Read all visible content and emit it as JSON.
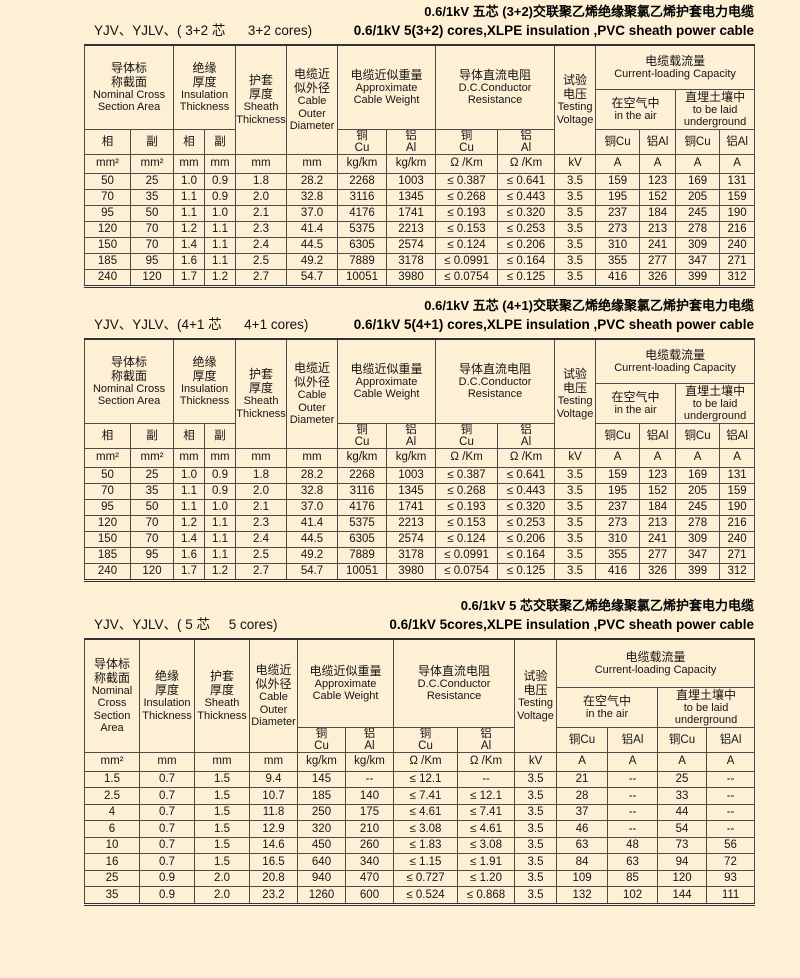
{
  "page": {
    "background": "#FDF0D4",
    "border_color": "#4C4C4C",
    "text_color": "#151515"
  },
  "sections": [
    {
      "model_label": "YJV、YJLV、( 3+2 芯      3+2 cores)",
      "title_cn": "0.6/1kV 五芯 (3+2)交联聚乙烯绝缘聚氯乙烯护套电力电缆",
      "title_en": "0.6/1kV 5(3+2) cores,XLPE insulation ,PVC sheath power cable",
      "header": {
        "cross_section": {
          "cn": "导体标\n称截面",
          "en": "Nominal Cross\nSection Area",
          "sub_phase": "相",
          "sub_aux": "副"
        },
        "insulation": {
          "cn": "绝缘\n厚度",
          "en": "Insulation\nThickness",
          "sub_phase": "相",
          "sub_aux": "副"
        },
        "sheath": {
          "cn": "护套\n厚度",
          "en": "Sheath\nThickness"
        },
        "diameter": {
          "cn": "电缆近\n似外径",
          "en": "Cable\nOuter\nDiameter"
        },
        "weight": {
          "cn": "电缆近似重量",
          "en": "Approximate\nCable Weight",
          "sub_cu": "铜\nCu",
          "sub_al": "铝\nAl"
        },
        "resistance": {
          "cn": "导体直流电阻",
          "en": "D.C.Conductor\nResistance",
          "sub_cu": "铜\nCu",
          "sub_al": "铝\nAl"
        },
        "voltage": {
          "cn": "试验\n电压",
          "en": "Testing\nVoltage"
        },
        "capacity": {
          "cn": "电缆载流量",
          "en": "Current-loading Capacity",
          "air": {
            "cn": "在空气中",
            "en": "in the air",
            "sub_cu": "铜Cu",
            "sub_al": "铝Al"
          },
          "underground": {
            "cn": "直埋土壤中",
            "en": "to be laid\nunderground",
            "sub_cu": "铜Cu",
            "sub_al": "铝Al"
          }
        }
      },
      "units": [
        "mm²",
        "mm²",
        "mm",
        "mm",
        "mm",
        "mm",
        "kg/km",
        "kg/km",
        "Ω /Km",
        "Ω /Km",
        "kV",
        "A",
        "A",
        "A",
        "A"
      ],
      "rows": [
        [
          "50",
          "25",
          "1.0",
          "0.9",
          "1.8",
          "28.2",
          "2268",
          "1003",
          "≤ 0.387",
          "≤ 0.641",
          "3.5",
          "159",
          "123",
          "169",
          "131"
        ],
        [
          "70",
          "35",
          "1.1",
          "0.9",
          "2.0",
          "32.8",
          "3116",
          "1345",
          "≤ 0.268",
          "≤ 0.443",
          "3.5",
          "195",
          "152",
          "205",
          "159"
        ],
        [
          "95",
          "50",
          "1.1",
          "1.0",
          "2.1",
          "37.0",
          "4176",
          "1741",
          "≤ 0.193",
          "≤ 0.320",
          "3.5",
          "237",
          "184",
          "245",
          "190"
        ],
        [
          "120",
          "70",
          "1.2",
          "1.1",
          "2.3",
          "41.4",
          "5375",
          "2213",
          "≤ 0.153",
          "≤ 0.253",
          "3.5",
          "273",
          "213",
          "278",
          "216"
        ],
        [
          "150",
          "70",
          "1.4",
          "1.1",
          "2.4",
          "44.5",
          "6305",
          "2574",
          "≤ 0.124",
          "≤ 0.206",
          "3.5",
          "310",
          "241",
          "309",
          "240"
        ],
        [
          "185",
          "95",
          "1.6",
          "1.1",
          "2.5",
          "49.2",
          "7889",
          "3178",
          "≤ 0.0991",
          "≤ 0.164",
          "3.5",
          "355",
          "277",
          "347",
          "271"
        ],
        [
          "240",
          "120",
          "1.7",
          "1.2",
          "2.7",
          "54.7",
          "10051",
          "3980",
          "≤ 0.0754",
          "≤ 0.125",
          "3.5",
          "416",
          "326",
          "399",
          "312"
        ]
      ]
    },
    {
      "model_label": "YJV、YJLV、(4+1 芯      4+1 cores)",
      "title_cn": "0.6/1kV 五芯 (4+1)交联聚乙烯绝缘聚氯乙烯护套电力电缆",
      "title_en": "0.6/1kV 5(4+1) cores,XLPE insulation ,PVC sheath power cable",
      "header": {
        "cross_section": {
          "cn": "导体标\n称截面",
          "en": "Nominal Cross\nSection Area",
          "sub_phase": "相",
          "sub_aux": "副"
        },
        "insulation": {
          "cn": "绝缘\n厚度",
          "en": "Insulation\nThickness",
          "sub_phase": "相",
          "sub_aux": "副"
        },
        "sheath": {
          "cn": "护套\n厚度",
          "en": "Sheath\nThickness"
        },
        "diameter": {
          "cn": "电缆近\n似外径",
          "en": "Cable\nOuter\nDiameter"
        },
        "weight": {
          "cn": "电缆近似重量",
          "en": "Approximate\nCable Weight",
          "sub_cu": "铜\nCu",
          "sub_al": "铝\nAl"
        },
        "resistance": {
          "cn": "导体直流电阻",
          "en": "D.C.Conductor\nResistance",
          "sub_cu": "铜\nCu",
          "sub_al": "铝\nAl"
        },
        "voltage": {
          "cn": "试验\n电压",
          "en": "Testing\nVoltage"
        },
        "capacity": {
          "cn": "电缆载流量",
          "en": "Current-loading Capacity",
          "air": {
            "cn": "在空气中",
            "en": "in the air",
            "sub_cu": "铜Cu",
            "sub_al": "铝Al"
          },
          "underground": {
            "cn": "直埋土壤中",
            "en": "to be laid\nunderground",
            "sub_cu": "铜Cu",
            "sub_al": "铝Al"
          }
        }
      },
      "units": [
        "mm²",
        "mm²",
        "mm",
        "mm",
        "mm",
        "mm",
        "kg/km",
        "kg/km",
        "Ω /Km",
        "Ω /Km",
        "kV",
        "A",
        "A",
        "A",
        "A"
      ],
      "rows": [
        [
          "50",
          "25",
          "1.0",
          "0.9",
          "1.8",
          "28.2",
          "2268",
          "1003",
          "≤ 0.387",
          "≤ 0.641",
          "3.5",
          "159",
          "123",
          "169",
          "131"
        ],
        [
          "70",
          "35",
          "1.1",
          "0.9",
          "2.0",
          "32.8",
          "3116",
          "1345",
          "≤ 0.268",
          "≤ 0.443",
          "3.5",
          "195",
          "152",
          "205",
          "159"
        ],
        [
          "95",
          "50",
          "1.1",
          "1.0",
          "2.1",
          "37.0",
          "4176",
          "1741",
          "≤ 0.193",
          "≤ 0.320",
          "3.5",
          "237",
          "184",
          "245",
          "190"
        ],
        [
          "120",
          "70",
          "1.2",
          "1.1",
          "2.3",
          "41.4",
          "5375",
          "2213",
          "≤ 0.153",
          "≤ 0.253",
          "3.5",
          "273",
          "213",
          "278",
          "216"
        ],
        [
          "150",
          "70",
          "1.4",
          "1.1",
          "2.4",
          "44.5",
          "6305",
          "2574",
          "≤ 0.124",
          "≤ 0.206",
          "3.5",
          "310",
          "241",
          "309",
          "240"
        ],
        [
          "185",
          "95",
          "1.6",
          "1.1",
          "2.5",
          "49.2",
          "7889",
          "3178",
          "≤ 0.0991",
          "≤ 0.164",
          "3.5",
          "355",
          "277",
          "347",
          "271"
        ],
        [
          "240",
          "120",
          "1.7",
          "1.2",
          "2.7",
          "54.7",
          "10051",
          "3980",
          "≤ 0.0754",
          "≤ 0.125",
          "3.5",
          "416",
          "326",
          "399",
          "312"
        ]
      ]
    },
    {
      "model_label": "YJV、YJLV、( 5 芯     5 cores)",
      "title_cn": "0.6/1kV 5 芯交联聚乙烯绝缘聚氯乙烯护套电力电缆",
      "title_en": "0.6/1kV 5cores,XLPE insulation ,PVC sheath power cable",
      "header": {
        "cross_section": {
          "cn": "导体标\n称截面",
          "en": "Nominal\nCross\nSection Area"
        },
        "insulation": {
          "cn": "绝缘\n厚度",
          "en": "Insulation\nThickness"
        },
        "sheath": {
          "cn": "护套\n厚度",
          "en": "Sheath\nThickness"
        },
        "diameter": {
          "cn": "电缆近\n似外径",
          "en": "Cable\nOuter\nDiameter"
        },
        "weight": {
          "cn": "电缆近似重量",
          "en": "Approximate\nCable Weight",
          "sub_cu": "铜\nCu",
          "sub_al": "铝\nAl"
        },
        "resistance": {
          "cn": "导体直流电阻",
          "en": "D.C.Conductor\nResistance",
          "sub_cu": "铜\nCu",
          "sub_al": "铝\nAl"
        },
        "voltage": {
          "cn": "试验\n电压",
          "en": "Testing\nVoltage"
        },
        "capacity": {
          "cn": "电缆载流量",
          "en": "Current-loading Capacity",
          "air": {
            "cn": "在空气中",
            "en": "in the air",
            "sub_cu": "铜Cu",
            "sub_al": "铝Al"
          },
          "underground": {
            "cn": "直埋土壤中",
            "en": "to be laid\nunderground",
            "sub_cu": "铜Cu",
            "sub_al": "铝Al"
          }
        }
      },
      "units": [
        "mm²",
        "mm",
        "mm",
        "mm",
        "kg/km",
        "kg/km",
        "Ω /Km",
        "Ω /Km",
        "kV",
        "A",
        "A",
        "A",
        "A"
      ],
      "rows": [
        [
          "1.5",
          "0.7",
          "1.5",
          "9.4",
          "145",
          "--",
          "≤ 12.1",
          "--",
          "3.5",
          "21",
          "--",
          "25",
          "--"
        ],
        [
          "2.5",
          "0.7",
          "1.5",
          "10.7",
          "185",
          "140",
          "≤ 7.41",
          "≤ 12.1",
          "3.5",
          "28",
          "--",
          "33",
          "--"
        ],
        [
          "4",
          "0.7",
          "1.5",
          "11.8",
          "250",
          "175",
          "≤ 4.61",
          "≤ 7.41",
          "3.5",
          "37",
          "--",
          "44",
          "--"
        ],
        [
          "6",
          "0.7",
          "1.5",
          "12.9",
          "320",
          "210",
          "≤ 3.08",
          "≤ 4.61",
          "3.5",
          "46",
          "--",
          "54",
          "--"
        ],
        [
          "10",
          "0.7",
          "1.5",
          "14.6",
          "450",
          "260",
          "≤ 1.83",
          "≤ 3.08",
          "3.5",
          "63",
          "48",
          "73",
          "56"
        ],
        [
          "16",
          "0.7",
          "1.5",
          "16.5",
          "640",
          "340",
          "≤ 1.15",
          "≤ 1.91",
          "3.5",
          "84",
          "63",
          "94",
          "72"
        ],
        [
          "25",
          "0.9",
          "2.0",
          "20.8",
          "940",
          "470",
          "≤ 0.727",
          "≤ 1.20",
          "3.5",
          "109",
          "85",
          "120",
          "93"
        ],
        [
          "35",
          "0.9",
          "2.0",
          "23.2",
          "1260",
          "600",
          "≤ 0.524",
          "≤ 0.868",
          "3.5",
          "132",
          "102",
          "144",
          "111"
        ]
      ]
    }
  ]
}
